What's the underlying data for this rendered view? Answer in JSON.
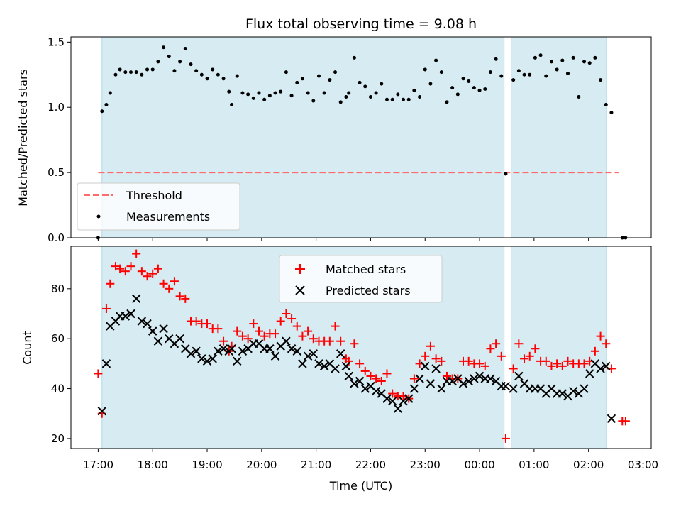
{
  "chart_data": [
    {
      "type": "scatter",
      "title": "Flux total observing time = 9.08 h",
      "xlabel": "",
      "ylabel": "Matched/Predicted stars",
      "ylim": [
        0,
        1.54
      ],
      "yticks": [
        "0.0",
        "0.5",
        "1.0",
        "1.5"
      ],
      "threshold": {
        "name": "Threshold",
        "value": 0.5,
        "x_start": 17.0,
        "x_end": 26.55,
        "color": "#ff6b6b"
      },
      "legend": {
        "placement": "lower-left",
        "entries": [
          "Threshold",
          "Measurements"
        ]
      },
      "shaded_intervals": [
        [
          17.07,
          24.45
        ],
        [
          24.58,
          26.33
        ]
      ],
      "series": [
        {
          "name": "Measurements",
          "color": "#000000",
          "marker": "dot",
          "x": [
            17.0,
            17.07,
            17.15,
            17.22,
            17.32,
            17.4,
            17.5,
            17.6,
            17.7,
            17.8,
            17.9,
            18.0,
            18.1,
            18.2,
            18.3,
            18.4,
            18.5,
            18.6,
            18.7,
            18.8,
            18.9,
            19.0,
            19.1,
            19.2,
            19.3,
            19.4,
            19.45,
            19.55,
            19.65,
            19.75,
            19.85,
            19.95,
            20.05,
            20.15,
            20.25,
            20.35,
            20.45,
            20.55,
            20.65,
            20.75,
            20.85,
            20.95,
            21.05,
            21.15,
            21.25,
            21.35,
            21.45,
            21.55,
            21.6,
            21.7,
            21.8,
            21.9,
            22.0,
            22.1,
            22.2,
            22.3,
            22.4,
            22.5,
            22.6,
            22.7,
            22.8,
            22.9,
            23.0,
            23.1,
            23.2,
            23.3,
            23.4,
            23.5,
            23.6,
            23.7,
            23.8,
            23.9,
            24.0,
            24.1,
            24.2,
            24.3,
            24.4,
            24.48,
            24.62,
            24.72,
            24.82,
            24.92,
            25.02,
            25.12,
            25.22,
            25.32,
            25.42,
            25.52,
            25.62,
            25.72,
            25.82,
            25.92,
            26.02,
            26.12,
            26.22,
            26.32,
            26.42,
            26.62,
            26.68
          ],
          "y": [
            0.0,
            0.97,
            1.02,
            1.11,
            1.25,
            1.29,
            1.27,
            1.27,
            1.27,
            1.25,
            1.29,
            1.29,
            1.35,
            1.46,
            1.39,
            1.28,
            1.35,
            1.45,
            1.33,
            1.28,
            1.25,
            1.22,
            1.29,
            1.25,
            1.22,
            1.12,
            1.02,
            1.24,
            1.11,
            1.1,
            1.07,
            1.11,
            1.06,
            1.09,
            1.11,
            1.12,
            1.27,
            1.09,
            1.19,
            1.22,
            1.11,
            1.05,
            1.24,
            1.11,
            1.21,
            1.27,
            1.04,
            1.08,
            1.11,
            1.38,
            1.19,
            1.16,
            1.08,
            1.11,
            1.18,
            1.06,
            1.06,
            1.1,
            1.06,
            1.06,
            1.13,
            1.08,
            1.29,
            1.18,
            1.36,
            1.27,
            1.04,
            1.15,
            1.1,
            1.22,
            1.2,
            1.15,
            1.13,
            1.14,
            1.27,
            1.37,
            1.24,
            0.49,
            1.21,
            1.28,
            1.25,
            1.25,
            1.38,
            1.4,
            1.24,
            1.35,
            1.29,
            1.36,
            1.26,
            1.38,
            1.08,
            1.35,
            1.34,
            1.38,
            1.21,
            1.02,
            0.96,
            0.0,
            0.0
          ]
        }
      ]
    },
    {
      "type": "scatter",
      "title": "",
      "xlabel": "Time (UTC)",
      "ylabel": "Count",
      "ylim": [
        16,
        97
      ],
      "xlim": [
        16.5,
        27.15
      ],
      "yticks": [
        "20",
        "40",
        "60",
        "80"
      ],
      "xticks": [
        "17:00",
        "18:00",
        "19:00",
        "20:00",
        "21:00",
        "22:00",
        "23:00",
        "00:00",
        "01:00",
        "02:00",
        "03:00"
      ],
      "legend": {
        "placement": "upper-center",
        "entries": [
          "Matched stars",
          "Predicted stars"
        ]
      },
      "shaded_intervals": [
        [
          17.07,
          24.45
        ],
        [
          24.58,
          26.33
        ]
      ],
      "series": [
        {
          "name": "Matched stars",
          "color": "#ff0000",
          "marker": "plus",
          "x": [
            17.0,
            17.07,
            17.15,
            17.22,
            17.32,
            17.4,
            17.5,
            17.6,
            17.7,
            17.8,
            17.9,
            18.0,
            18.1,
            18.2,
            18.3,
            18.4,
            18.5,
            18.6,
            18.7,
            18.8,
            18.9,
            19.0,
            19.1,
            19.2,
            19.3,
            19.4,
            19.45,
            19.55,
            19.65,
            19.75,
            19.85,
            19.95,
            20.05,
            20.15,
            20.25,
            20.35,
            20.45,
            20.55,
            20.65,
            20.75,
            20.85,
            20.95,
            21.05,
            21.15,
            21.25,
            21.35,
            21.45,
            21.55,
            21.6,
            21.7,
            21.8,
            21.9,
            22.0,
            22.1,
            22.2,
            22.3,
            22.4,
            22.5,
            22.6,
            22.7,
            22.8,
            22.9,
            23.0,
            23.1,
            23.2,
            23.3,
            23.4,
            23.5,
            23.6,
            23.7,
            23.8,
            23.9,
            24.0,
            24.1,
            24.2,
            24.3,
            24.4,
            24.48,
            24.62,
            24.72,
            24.82,
            24.92,
            25.02,
            25.12,
            25.22,
            25.32,
            25.42,
            25.52,
            25.62,
            25.72,
            25.82,
            25.92,
            26.02,
            26.12,
            26.22,
            26.32,
            26.42,
            26.62,
            26.68
          ],
          "y": [
            46,
            30,
            72,
            82,
            89,
            88,
            87,
            89,
            94,
            87,
            85,
            86,
            88,
            82,
            80,
            83,
            77,
            76,
            67,
            67,
            66,
            66,
            64,
            64,
            59,
            55,
            57,
            63,
            61,
            60,
            66,
            63,
            61,
            62,
            62,
            67,
            70,
            68,
            65,
            61,
            63,
            60,
            59,
            59,
            59,
            65,
            59,
            52,
            51,
            58,
            50,
            47,
            45,
            44,
            43,
            46,
            38,
            37,
            37,
            36,
            44,
            50,
            53,
            57,
            52,
            51,
            45,
            44,
            44,
            51,
            51,
            50,
            50,
            49,
            56,
            58,
            53,
            20,
            48,
            58,
            52,
            53,
            56,
            51,
            51,
            49,
            50,
            49,
            51,
            50,
            50,
            50,
            51,
            55,
            61,
            58,
            48,
            27,
            27
          ]
        },
        {
          "name": "Predicted stars",
          "color": "#000000",
          "marker": "x",
          "x": [
            17.07,
            17.15,
            17.22,
            17.32,
            17.4,
            17.5,
            17.6,
            17.7,
            17.8,
            17.9,
            18.0,
            18.1,
            18.2,
            18.3,
            18.4,
            18.5,
            18.6,
            18.7,
            18.8,
            18.9,
            19.0,
            19.1,
            19.2,
            19.3,
            19.4,
            19.45,
            19.55,
            19.65,
            19.75,
            19.85,
            19.95,
            20.05,
            20.15,
            20.25,
            20.35,
            20.45,
            20.55,
            20.65,
            20.75,
            20.85,
            20.95,
            21.05,
            21.15,
            21.25,
            21.35,
            21.45,
            21.55,
            21.6,
            21.7,
            21.8,
            21.9,
            22.0,
            22.1,
            22.2,
            22.3,
            22.4,
            22.5,
            22.6,
            22.7,
            22.8,
            22.9,
            23.0,
            23.1,
            23.2,
            23.3,
            23.4,
            23.5,
            23.6,
            23.7,
            23.8,
            23.9,
            24.0,
            24.1,
            24.2,
            24.3,
            24.4,
            24.48,
            24.62,
            24.72,
            24.82,
            24.92,
            25.02,
            25.12,
            25.22,
            25.32,
            25.42,
            25.52,
            25.62,
            25.72,
            25.82,
            25.92,
            26.02,
            26.12,
            26.22,
            26.32,
            26.42
          ],
          "y": [
            31,
            50,
            65,
            67,
            69,
            69,
            70,
            76,
            67,
            66,
            63,
            59,
            64,
            60,
            58,
            60,
            56,
            54,
            55,
            52,
            51,
            52,
            55,
            56,
            55,
            56,
            51,
            55,
            56,
            58,
            58,
            56,
            56,
            53,
            57,
            59,
            56,
            55,
            50,
            53,
            54,
            50,
            49,
            50,
            48,
            54,
            49,
            45,
            42,
            43,
            40,
            41,
            39,
            38,
            36,
            35,
            32,
            35,
            36,
            40,
            44,
            49,
            42,
            48,
            40,
            43,
            43,
            44,
            42,
            43,
            44,
            45,
            44,
            44,
            43,
            41,
            41,
            40,
            45,
            42,
            40,
            40,
            40,
            38,
            40,
            38,
            38,
            37,
            39,
            38,
            40,
            46,
            50,
            48,
            49,
            28
          ]
        }
      ]
    }
  ]
}
